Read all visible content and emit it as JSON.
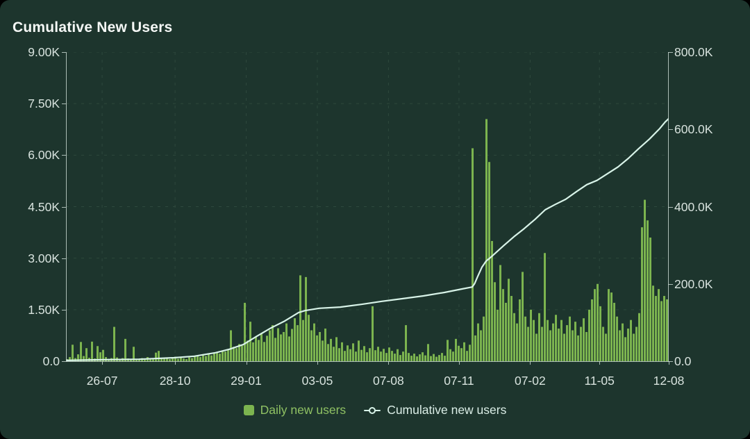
{
  "page": {
    "title": "Cumulative New Users"
  },
  "colors": {
    "card_background": "#1d352d",
    "bar": "#7cb44f",
    "line": "#d8f3e8",
    "grid": "#2e493d",
    "axis": "#c6d5cf",
    "tick_text": "#d8e3de",
    "title_text": "#f4f7f5",
    "legend_daily_text": "#8fc163",
    "legend_cumulative_text": "#dbeee7"
  },
  "chart_data": {
    "type": "bar",
    "title": "Cumulative New Users",
    "xlabel": "",
    "ylabel_left": "Daily new users",
    "ylabel_right": "Cumulative new users",
    "grid": "dashed",
    "legend_position": "bottom-center",
    "left_axis": {
      "min": 0,
      "max": 9000,
      "ticks_top_to_bottom": [
        "9.00K",
        "7.50K",
        "6.00K",
        "4.50K",
        "3.00K",
        "1.50K",
        "0.0"
      ]
    },
    "right_axis": {
      "min": 0,
      "max": 800000,
      "ticks_top_to_bottom": [
        "800.0K",
        "600.0K",
        "400.0K",
        "200.0K",
        "0.0"
      ]
    },
    "x_ticks": [
      {
        "label": "26-07",
        "t": 0.06
      },
      {
        "label": "28-10",
        "t": 0.181
      },
      {
        "label": "29-01",
        "t": 0.299
      },
      {
        "label": "03-05",
        "t": 0.417
      },
      {
        "label": "07-08",
        "t": 0.535
      },
      {
        "label": "07-11",
        "t": 0.652
      },
      {
        "label": "07-02",
        "t": 0.77
      },
      {
        "label": "11-05",
        "t": 0.885
      },
      {
        "label": "12-08",
        "t": 1.0
      }
    ],
    "series": [
      {
        "name": "Daily new users",
        "type": "bar",
        "axis": "left",
        "color": "#7cb44f",
        "values": [
          60,
          120,
          480,
          90,
          200,
          560,
          150,
          380,
          100,
          570,
          80,
          440,
          260,
          330,
          120,
          70,
          90,
          1000,
          110,
          60,
          90,
          650,
          80,
          60,
          420,
          70,
          50,
          90,
          60,
          120,
          80,
          70,
          250,
          300,
          90,
          70,
          110,
          60,
          90,
          130,
          70,
          100,
          80,
          60,
          110,
          90,
          140,
          160,
          120,
          180,
          150,
          200,
          170,
          230,
          260,
          220,
          310,
          280,
          350,
          900,
          420,
          380,
          500,
          450,
          1700,
          600,
          1150,
          550,
          700,
          620,
          820,
          560,
          740,
          900,
          1050,
          680,
          960,
          780,
          850,
          1100,
          720,
          940,
          1250,
          1050,
          2500,
          1200,
          2450,
          1350,
          900,
          1100,
          750,
          850,
          600,
          950,
          500,
          650,
          420,
          700,
          380,
          550,
          300,
          460,
          350,
          520,
          280,
          600,
          330,
          440,
          260,
          380,
          1600,
          320,
          420,
          280,
          360,
          240,
          400,
          300,
          220,
          350,
          180,
          280,
          1050,
          240,
          160,
          220,
          140,
          200,
          260,
          170,
          500,
          150,
          210,
          130,
          180,
          240,
          160,
          620,
          350,
          280,
          650,
          450,
          380,
          550,
          300,
          480,
          6200,
          750,
          1100,
          900,
          1300,
          7050,
          5800,
          3500,
          2300,
          1500,
          2800,
          2100,
          1700,
          2400,
          1900,
          1400,
          1100,
          1800,
          2600,
          1300,
          1000,
          1500,
          1200,
          800,
          1400,
          1000,
          3150,
          1200,
          900,
          1100,
          1350,
          950,
          1200,
          800,
          1050,
          1300,
          900,
          1150,
          750,
          1000,
          1250,
          850,
          1500,
          1800,
          2100,
          2250,
          1600,
          1000,
          800,
          2100,
          2000,
          1700,
          1300,
          900,
          1100,
          700,
          950,
          1200,
          800,
          1000,
          1400,
          3900,
          4700,
          4100,
          3600,
          2200,
          1900,
          2100,
          1750,
          1900,
          1800
        ]
      },
      {
        "name": "Cumulative new users",
        "type": "line",
        "axis": "right",
        "color": "#d8f3e8",
        "points_t_valueK": [
          [
            0.0,
            2
          ],
          [
            0.063,
            4
          ],
          [
            0.121,
            5
          ],
          [
            0.179,
            9
          ],
          [
            0.213,
            13
          ],
          [
            0.248,
            22
          ],
          [
            0.271,
            31
          ],
          [
            0.294,
            43
          ],
          [
            0.317,
            65
          ],
          [
            0.34,
            86
          ],
          [
            0.363,
            104
          ],
          [
            0.386,
            126
          ],
          [
            0.397,
            131
          ],
          [
            0.42,
            137
          ],
          [
            0.455,
            140
          ],
          [
            0.49,
            147
          ],
          [
            0.524,
            155
          ],
          [
            0.559,
            162
          ],
          [
            0.593,
            169
          ],
          [
            0.628,
            178
          ],
          [
            0.657,
            187
          ],
          [
            0.674,
            192
          ],
          [
            0.678,
            201
          ],
          [
            0.683,
            219
          ],
          [
            0.69,
            243
          ],
          [
            0.697,
            259
          ],
          [
            0.704,
            268
          ],
          [
            0.714,
            282
          ],
          [
            0.726,
            299
          ],
          [
            0.743,
            322
          ],
          [
            0.76,
            343
          ],
          [
            0.778,
            367
          ],
          [
            0.795,
            392
          ],
          [
            0.812,
            406
          ],
          [
            0.829,
            419
          ],
          [
            0.847,
            439
          ],
          [
            0.864,
            457
          ],
          [
            0.881,
            468
          ],
          [
            0.899,
            486
          ],
          [
            0.916,
            503
          ],
          [
            0.933,
            525
          ],
          [
            0.95,
            550
          ],
          [
            0.968,
            575
          ],
          [
            0.985,
            602
          ],
          [
            0.994,
            619
          ],
          [
            1.0,
            628
          ]
        ]
      }
    ]
  }
}
